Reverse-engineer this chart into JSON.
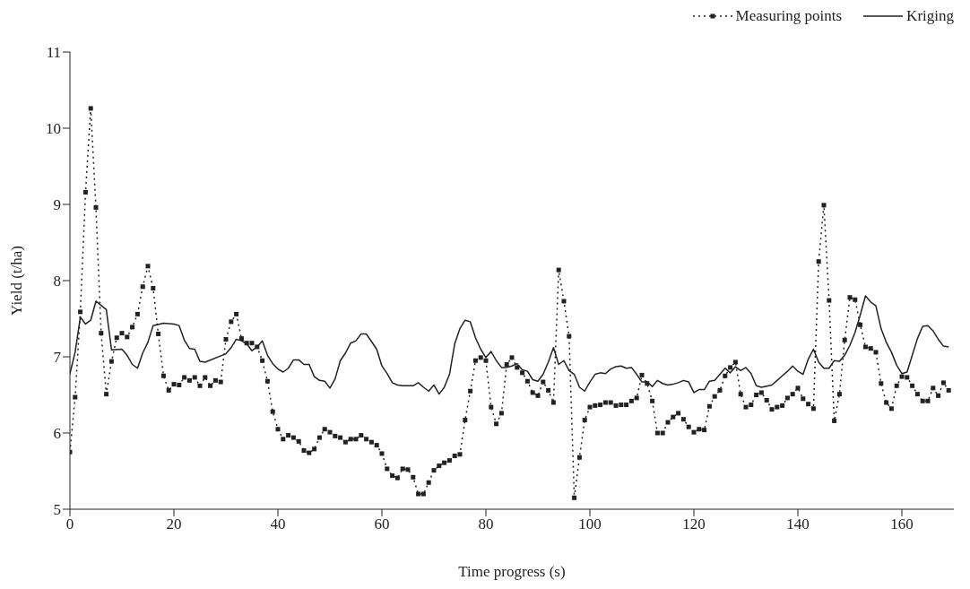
{
  "chart_data": {
    "type": "line",
    "xlabel": "Time progress (s)",
    "ylabel": "Yield (t/ha)",
    "xlim": [
      0,
      170
    ],
    "xticks": [
      0,
      20,
      40,
      60,
      80,
      100,
      120,
      140,
      160
    ],
    "ylim": [
      5,
      11
    ],
    "yticks": [
      5,
      6,
      7,
      8,
      9,
      10,
      11
    ],
    "grid": false,
    "legend": "top right",
    "series": [
      {
        "name": "Measuring points",
        "color": "#222222",
        "marker": "square",
        "line_style": "dotted",
        "x": [
          0,
          1,
          2,
          3,
          4,
          5,
          6,
          7,
          8,
          9,
          10,
          11,
          12,
          13,
          14,
          15,
          16,
          17,
          18,
          19,
          20,
          21,
          22,
          23,
          24,
          25,
          26,
          27,
          28,
          29,
          30,
          31,
          32,
          33,
          34,
          35,
          36,
          37,
          38,
          39,
          40,
          41,
          42,
          43,
          44,
          45,
          46,
          47,
          48,
          49,
          50,
          51,
          52,
          53,
          54,
          55,
          56,
          57,
          58,
          59,
          60,
          61,
          62,
          63,
          64,
          65,
          66,
          67,
          68,
          69,
          70,
          71,
          72,
          73,
          74,
          75,
          76,
          77,
          78,
          79,
          80,
          81,
          82,
          83,
          84,
          85,
          86,
          87,
          88,
          89,
          90,
          91,
          92,
          93,
          94,
          95,
          96,
          97,
          98,
          99,
          100,
          101,
          102,
          103,
          104,
          105,
          106,
          107,
          108,
          109,
          110,
          111,
          112,
          113,
          114,
          115,
          116,
          117,
          118,
          119,
          120,
          121,
          122,
          123,
          124,
          125,
          126,
          127,
          128,
          129,
          130,
          131,
          132,
          133,
          134,
          135,
          136,
          137,
          138,
          139,
          140,
          141,
          142,
          143,
          144,
          145,
          146,
          147,
          148,
          149,
          150,
          151,
          152,
          153,
          154,
          155,
          156,
          157,
          158,
          159,
          160,
          161,
          162,
          163,
          164,
          165,
          166,
          167,
          168,
          169
        ],
        "values": [
          5.75,
          6.47,
          7.59,
          9.16,
          10.26,
          8.96,
          7.31,
          6.51,
          6.94,
          7.25,
          7.31,
          7.26,
          7.39,
          7.56,
          7.92,
          8.19,
          7.9,
          7.3,
          6.75,
          6.56,
          6.64,
          6.63,
          6.73,
          6.69,
          6.73,
          6.62,
          6.73,
          6.62,
          6.69,
          6.67,
          7.23,
          7.46,
          7.56,
          7.24,
          7.18,
          7.18,
          7.13,
          6.95,
          6.68,
          6.28,
          6.05,
          5.92,
          5.97,
          5.94,
          5.89,
          5.77,
          5.74,
          5.79,
          5.94,
          6.05,
          6.01,
          5.96,
          5.94,
          5.88,
          5.92,
          5.92,
          5.97,
          5.92,
          5.88,
          5.84,
          5.73,
          5.53,
          5.44,
          5.41,
          5.53,
          5.52,
          5.42,
          5.2,
          5.2,
          5.35,
          5.51,
          5.57,
          5.61,
          5.64,
          5.7,
          5.72,
          6.17,
          6.55,
          6.95,
          6.99,
          6.95,
          6.34,
          6.12,
          6.26,
          6.9,
          6.99,
          6.86,
          6.79,
          6.68,
          6.53,
          6.49,
          6.67,
          6.56,
          6.4,
          8.14,
          7.73,
          7.27,
          5.15,
          5.68,
          6.17,
          6.34,
          6.36,
          6.37,
          6.4,
          6.4,
          6.36,
          6.37,
          6.37,
          6.42,
          6.46,
          6.76,
          6.65,
          6.42,
          6.0,
          6.0,
          6.14,
          6.21,
          6.26,
          6.18,
          6.08,
          6.01,
          6.05,
          6.04,
          6.35,
          6.48,
          6.56,
          6.75,
          6.86,
          6.93,
          6.51,
          6.34,
          6.37,
          6.5,
          6.53,
          6.43,
          6.31,
          6.34,
          6.36,
          6.46,
          6.51,
          6.59,
          6.45,
          6.38,
          6.32,
          8.25,
          8.99,
          7.74,
          6.16,
          6.51,
          7.22,
          7.78,
          7.75,
          7.42,
          7.13,
          7.11,
          7.06,
          6.65,
          6.4,
          6.32,
          6.62,
          6.74,
          6.73,
          6.62,
          6.51,
          6.42,
          6.42,
          6.59,
          6.49,
          6.66,
          6.56
        ]
      },
      {
        "name": "Kriging",
        "color": "#222222",
        "marker": "none",
        "line_style": "solid",
        "x": [
          0,
          1,
          2,
          3,
          4,
          5,
          7,
          8,
          10,
          11,
          12,
          13,
          14,
          15,
          16,
          18,
          20,
          21,
          22,
          23,
          24,
          25,
          26,
          30,
          31,
          32,
          33,
          34,
          35,
          36,
          37,
          38,
          39,
          40,
          41,
          42,
          43,
          44,
          45,
          46,
          47,
          48,
          49,
          50,
          51,
          52,
          53,
          54,
          55,
          56,
          57,
          58,
          59,
          60,
          61,
          62,
          63,
          64,
          66,
          67,
          68,
          69,
          70,
          71,
          72,
          73,
          74,
          75,
          76,
          77,
          78,
          79,
          80,
          81,
          82,
          83,
          84,
          85,
          86,
          87,
          88,
          89,
          90,
          91,
          92,
          93,
          94,
          95,
          96,
          97,
          98,
          99,
          100,
          101,
          102,
          103,
          104,
          105,
          106,
          107,
          108,
          109,
          110,
          111,
          112,
          113,
          114,
          115,
          116,
          117,
          118,
          119,
          120,
          121,
          122,
          123,
          124,
          125,
          126,
          127,
          128,
          129,
          130,
          131,
          132,
          133,
          135,
          136,
          137,
          138,
          139,
          140,
          141,
          142,
          143,
          144,
          145,
          146,
          147,
          148,
          149,
          150,
          151,
          152,
          153,
          154,
          155,
          156,
          157,
          158,
          159,
          160,
          161,
          162,
          163,
          164,
          165,
          166,
          167,
          168,
          169
        ],
        "values": [
          6.78,
          7.06,
          7.52,
          7.43,
          7.48,
          7.73,
          7.62,
          7.09,
          7.1,
          7.02,
          6.9,
          6.85,
          7.05,
          7.19,
          7.41,
          7.44,
          7.43,
          7.41,
          7.22,
          7.11,
          7.1,
          6.94,
          6.93,
          7.04,
          7.12,
          7.23,
          7.21,
          7.17,
          7.08,
          7.13,
          7.21,
          7.02,
          6.91,
          6.84,
          6.8,
          6.85,
          6.96,
          6.96,
          6.9,
          6.9,
          6.74,
          6.69,
          6.68,
          6.59,
          6.71,
          6.95,
          7.05,
          7.18,
          7.21,
          7.3,
          7.3,
          7.2,
          7.1,
          6.88,
          6.78,
          6.66,
          6.63,
          6.62,
          6.62,
          6.66,
          6.6,
          6.55,
          6.63,
          6.51,
          6.6,
          6.77,
          7.17,
          7.37,
          7.48,
          7.46,
          7.25,
          7.1,
          6.99,
          7.07,
          6.95,
          6.86,
          6.86,
          6.88,
          6.91,
          6.83,
          6.81,
          6.7,
          6.68,
          6.77,
          6.93,
          7.12,
          6.9,
          6.95,
          6.82,
          6.77,
          6.6,
          6.55,
          6.67,
          6.77,
          6.79,
          6.78,
          6.84,
          6.87,
          6.88,
          6.85,
          6.86,
          6.77,
          6.67,
          6.67,
          6.61,
          6.69,
          6.65,
          6.63,
          6.64,
          6.66,
          6.69,
          6.67,
          6.53,
          6.57,
          6.57,
          6.68,
          6.69,
          6.77,
          6.85,
          6.79,
          6.87,
          6.82,
          6.86,
          6.78,
          6.62,
          6.6,
          6.63,
          6.69,
          6.75,
          6.81,
          6.88,
          6.81,
          6.77,
          6.97,
          7.1,
          6.93,
          6.85,
          6.85,
          6.95,
          6.94,
          7.02,
          7.15,
          7.32,
          7.55,
          7.8,
          7.72,
          7.67,
          7.37,
          7.19,
          7.06,
          6.89,
          6.78,
          6.8,
          7.02,
          7.24,
          7.4,
          7.41,
          7.34,
          7.23,
          7.14,
          7.13
        ]
      }
    ]
  }
}
